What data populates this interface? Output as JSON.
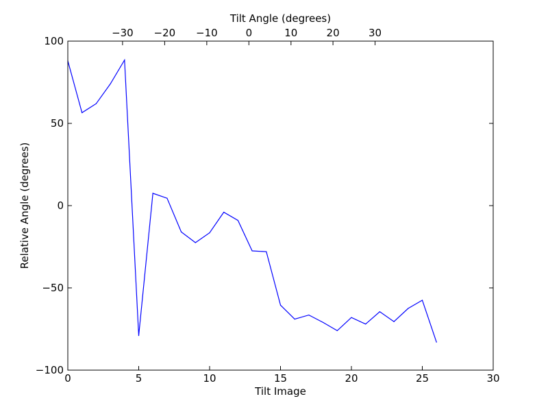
{
  "chart_data": {
    "type": "line",
    "xlabel": "Tilt Image",
    "ylabel": "Relative Angle (degrees)",
    "top_xlabel": "Tilt Angle (degrees)",
    "xlim": [
      0,
      30
    ],
    "ylim": [
      -100,
      100
    ],
    "x_ticks": [
      0,
      5,
      10,
      15,
      20,
      25,
      30
    ],
    "x_tick_labels": [
      "0",
      "5",
      "10",
      "15",
      "20",
      "25",
      "30"
    ],
    "y_ticks": [
      100,
      50,
      0,
      -50,
      -100
    ],
    "y_tick_labels": [
      "100",
      "50",
      "0",
      "−50",
      "−100"
    ],
    "top_ticks": [
      -30,
      -20,
      -10,
      0,
      10,
      20,
      30
    ],
    "top_tick_labels": [
      "−30",
      "−20",
      "−10",
      "0",
      "10",
      "20",
      "30"
    ],
    "top_axis_equivalent_image_index": [
      3.86,
      6.83,
      9.8,
      12.77,
      15.74,
      18.7,
      21.67
    ],
    "grid": false,
    "line_color": "#0000ff",
    "series": [
      {
        "x": [
          0,
          1,
          2,
          3,
          4,
          5,
          6,
          7,
          8,
          9,
          10,
          11,
          12,
          13,
          14,
          15,
          16,
          17,
          18,
          19,
          20,
          21,
          22,
          23,
          24,
          25,
          26
        ],
        "values": [
          88,
          56.5,
          62,
          74,
          88.5,
          -79,
          7.5,
          4.5,
          -16,
          -22.5,
          -16.5,
          -4,
          -9,
          -27.5,
          -28,
          -60.5,
          -69,
          -66.5,
          -71,
          -76,
          -68,
          -72,
          -64.5,
          -70.5,
          -62.5,
          -57.5,
          -83
        ]
      }
    ]
  }
}
